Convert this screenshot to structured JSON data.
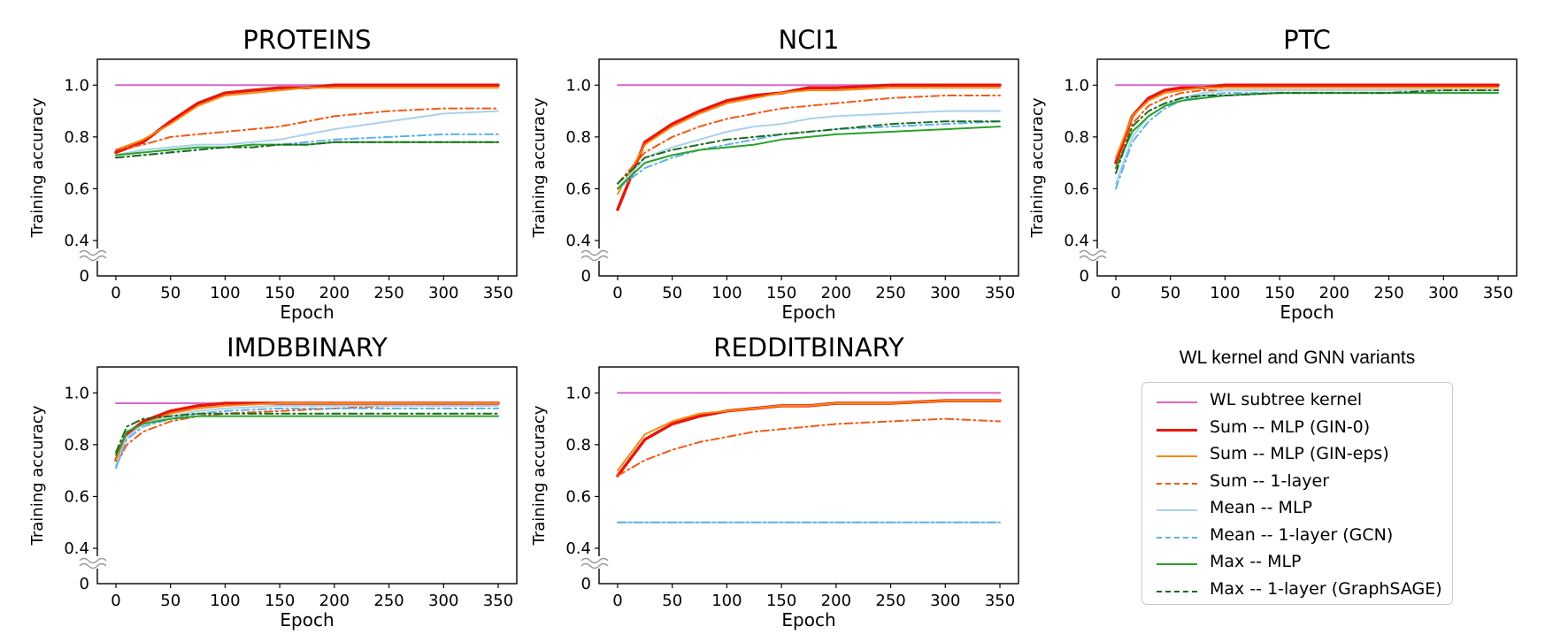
{
  "legend": {
    "title": "WL kernel and GNN variants",
    "entries": [
      {
        "label": "WL subtree kernel",
        "color": "#d966c8",
        "dash": "solid",
        "width": 2
      },
      {
        "label": "Sum -- MLP (GIN-0)",
        "color": "#e8170c",
        "dash": "solid",
        "width": 3.5
      },
      {
        "label": "Sum -- MLP (GIN-eps)",
        "color": "#f58a10",
        "dash": "solid",
        "width": 2
      },
      {
        "label": "Sum -- 1-layer",
        "color": "#ef5a16",
        "dash": "dashdot",
        "width": 2
      },
      {
        "label": "Mean -- MLP",
        "color": "#a9d2ea",
        "dash": "solid",
        "width": 2
      },
      {
        "label": "Mean -- 1-layer (GCN)",
        "color": "#5db3e8",
        "dash": "dashdot",
        "width": 2
      },
      {
        "label": "Max -- MLP",
        "color": "#2ca02c",
        "dash": "solid",
        "width": 2
      },
      {
        "label": "Max -- 1-layer (GraphSAGE)",
        "color": "#1e6b1e",
        "dash": "dashdot",
        "width": 2
      }
    ]
  },
  "chart_data": [
    {
      "type": "line",
      "title": "PROTEINS",
      "xlabel": "Epoch",
      "ylabel": "Training accuracy",
      "xlim": [
        -17,
        367
      ],
      "ylim": [
        0,
        1.1
      ],
      "y_axis_break": true,
      "xticks": [
        0,
        50,
        100,
        150,
        200,
        250,
        300,
        350
      ],
      "yticks": [
        "0",
        "0.4",
        "0.6",
        "0.8",
        "1.0"
      ],
      "x": [
        0,
        25,
        50,
        75,
        100,
        125,
        150,
        175,
        200,
        250,
        300,
        350
      ],
      "series": [
        {
          "name": "WL subtree kernel",
          "values": [
            1.0,
            1.0,
            1.0,
            1.0,
            1.0,
            1.0,
            1.0,
            1.0,
            1.0,
            1.0,
            1.0,
            1.0
          ]
        },
        {
          "name": "Sum -- MLP (GIN-0)",
          "values": [
            0.74,
            0.78,
            0.86,
            0.93,
            0.97,
            0.98,
            0.99,
            0.99,
            1.0,
            1.0,
            1.0,
            1.0
          ]
        },
        {
          "name": "Sum -- MLP (GIN-eps)",
          "values": [
            0.75,
            0.79,
            0.85,
            0.92,
            0.96,
            0.97,
            0.98,
            0.99,
            0.99,
            0.99,
            0.99,
            0.99
          ]
        },
        {
          "name": "Sum -- 1-layer",
          "values": [
            0.75,
            0.77,
            0.8,
            0.81,
            0.82,
            0.83,
            0.84,
            0.86,
            0.88,
            0.9,
            0.91,
            0.91
          ]
        },
        {
          "name": "Mean -- MLP",
          "values": [
            0.73,
            0.75,
            0.76,
            0.77,
            0.77,
            0.78,
            0.79,
            0.81,
            0.83,
            0.86,
            0.89,
            0.9
          ]
        },
        {
          "name": "Mean -- 1-layer (GCN)",
          "values": [
            0.72,
            0.73,
            0.74,
            0.75,
            0.76,
            0.77,
            0.77,
            0.78,
            0.79,
            0.8,
            0.81,
            0.81
          ]
        },
        {
          "name": "Max -- MLP",
          "values": [
            0.73,
            0.74,
            0.75,
            0.76,
            0.76,
            0.77,
            0.77,
            0.77,
            0.78,
            0.78,
            0.78,
            0.78
          ]
        },
        {
          "name": "Max -- 1-layer (GraphSAGE)",
          "values": [
            0.72,
            0.73,
            0.74,
            0.75,
            0.76,
            0.76,
            0.77,
            0.77,
            0.78,
            0.78,
            0.78,
            0.78
          ]
        }
      ]
    },
    {
      "type": "line",
      "title": "NCI1",
      "xlabel": "Epoch",
      "ylabel": "Training accuracy",
      "xlim": [
        -17,
        367
      ],
      "ylim": [
        0,
        1.1
      ],
      "y_axis_break": true,
      "xticks": [
        0,
        50,
        100,
        150,
        200,
        250,
        300,
        350
      ],
      "yticks": [
        "0",
        "0.4",
        "0.6",
        "0.8",
        "1.0"
      ],
      "x": [
        0,
        25,
        50,
        75,
        100,
        125,
        150,
        175,
        200,
        250,
        300,
        350
      ],
      "series": [
        {
          "name": "WL subtree kernel",
          "values": [
            1.0,
            1.0,
            1.0,
            1.0,
            1.0,
            1.0,
            1.0,
            1.0,
            1.0,
            1.0,
            1.0,
            1.0
          ]
        },
        {
          "name": "Sum -- MLP (GIN-0)",
          "values": [
            0.52,
            0.78,
            0.85,
            0.9,
            0.94,
            0.96,
            0.97,
            0.99,
            0.99,
            1.0,
            1.0,
            1.0
          ]
        },
        {
          "name": "Sum -- MLP (GIN-eps)",
          "values": [
            0.58,
            0.77,
            0.84,
            0.89,
            0.93,
            0.95,
            0.97,
            0.98,
            0.98,
            0.99,
            0.99,
            0.99
          ]
        },
        {
          "name": "Sum -- 1-layer",
          "values": [
            0.62,
            0.74,
            0.8,
            0.84,
            0.87,
            0.89,
            0.91,
            0.92,
            0.93,
            0.95,
            0.96,
            0.96
          ]
        },
        {
          "name": "Mean -- MLP",
          "values": [
            0.6,
            0.72,
            0.76,
            0.79,
            0.82,
            0.84,
            0.85,
            0.87,
            0.88,
            0.89,
            0.9,
            0.9
          ]
        },
        {
          "name": "Mean -- 1-layer (GCN)",
          "values": [
            0.6,
            0.68,
            0.72,
            0.75,
            0.77,
            0.79,
            0.81,
            0.82,
            0.83,
            0.84,
            0.85,
            0.86
          ]
        },
        {
          "name": "Max -- MLP",
          "values": [
            0.6,
            0.7,
            0.73,
            0.75,
            0.76,
            0.77,
            0.79,
            0.8,
            0.81,
            0.82,
            0.83,
            0.84
          ]
        },
        {
          "name": "Max -- 1-layer (GraphSAGE)",
          "values": [
            0.62,
            0.72,
            0.75,
            0.77,
            0.79,
            0.8,
            0.81,
            0.82,
            0.83,
            0.85,
            0.86,
            0.86
          ]
        }
      ]
    },
    {
      "type": "line",
      "title": "PTC",
      "xlabel": "Epoch",
      "ylabel": "Training accuracy",
      "xlim": [
        -17,
        367
      ],
      "ylim": [
        0,
        1.1
      ],
      "y_axis_break": true,
      "xticks": [
        0,
        50,
        100,
        150,
        200,
        250,
        300,
        350
      ],
      "yticks": [
        "0",
        "0.4",
        "0.6",
        "0.8",
        "1.0"
      ],
      "x": [
        0,
        15,
        30,
        45,
        60,
        80,
        100,
        150,
        200,
        250,
        300,
        350
      ],
      "series": [
        {
          "name": "WL subtree kernel",
          "values": [
            1.0,
            1.0,
            1.0,
            1.0,
            1.0,
            1.0,
            1.0,
            1.0,
            1.0,
            1.0,
            1.0,
            1.0
          ]
        },
        {
          "name": "Sum -- MLP (GIN-0)",
          "values": [
            0.7,
            0.88,
            0.95,
            0.98,
            0.99,
            0.99,
            1.0,
            1.0,
            1.0,
            1.0,
            1.0,
            1.0
          ]
        },
        {
          "name": "Sum -- MLP (GIN-eps)",
          "values": [
            0.72,
            0.88,
            0.94,
            0.97,
            0.98,
            0.99,
            0.99,
            0.99,
            0.99,
            0.99,
            0.99,
            0.99
          ]
        },
        {
          "name": "Sum -- 1-layer",
          "values": [
            0.68,
            0.85,
            0.92,
            0.95,
            0.97,
            0.98,
            0.98,
            0.98,
            0.98,
            0.98,
            0.98,
            0.98
          ]
        },
        {
          "name": "Mean -- MLP",
          "values": [
            0.62,
            0.8,
            0.88,
            0.92,
            0.95,
            0.97,
            0.98,
            0.98,
            0.98,
            0.98,
            0.98,
            0.98
          ]
        },
        {
          "name": "Mean -- 1-layer (GCN)",
          "values": [
            0.6,
            0.78,
            0.86,
            0.91,
            0.94,
            0.96,
            0.97,
            0.97,
            0.97,
            0.97,
            0.97,
            0.97
          ]
        },
        {
          "name": "Max -- MLP",
          "values": [
            0.68,
            0.82,
            0.88,
            0.92,
            0.94,
            0.95,
            0.96,
            0.97,
            0.97,
            0.97,
            0.97,
            0.97
          ]
        },
        {
          "name": "Max -- 1-layer (GraphSAGE)",
          "values": [
            0.66,
            0.84,
            0.9,
            0.93,
            0.95,
            0.96,
            0.96,
            0.97,
            0.97,
            0.97,
            0.98,
            0.98
          ]
        }
      ]
    },
    {
      "type": "line",
      "title": "IMDBBINARY",
      "xlabel": "Epoch",
      "ylabel": "Training accuracy",
      "xlim": [
        -17,
        367
      ],
      "ylim": [
        0,
        1.1
      ],
      "y_axis_break": true,
      "xticks": [
        0,
        50,
        100,
        150,
        200,
        250,
        300,
        350
      ],
      "yticks": [
        "0",
        "0.4",
        "0.6",
        "0.8",
        "1.0"
      ],
      "x": [
        0,
        10,
        25,
        50,
        75,
        100,
        150,
        200,
        250,
        300,
        350
      ],
      "series": [
        {
          "name": "WL subtree kernel",
          "values": [
            0.96,
            0.96,
            0.96,
            0.96,
            0.96,
            0.96,
            0.96,
            0.96,
            0.96,
            0.96,
            0.96
          ]
        },
        {
          "name": "Sum -- MLP (GIN-0)",
          "values": [
            0.74,
            0.84,
            0.89,
            0.93,
            0.95,
            0.96,
            0.96,
            0.96,
            0.96,
            0.96,
            0.96
          ]
        },
        {
          "name": "Sum -- MLP (GIN-eps)",
          "values": [
            0.74,
            0.83,
            0.88,
            0.92,
            0.94,
            0.95,
            0.96,
            0.96,
            0.96,
            0.96,
            0.96
          ]
        },
        {
          "name": "Sum -- 1-layer",
          "values": [
            0.72,
            0.8,
            0.85,
            0.89,
            0.91,
            0.92,
            0.93,
            0.94,
            0.95,
            0.95,
            0.95
          ]
        },
        {
          "name": "Mean -- MLP",
          "values": [
            0.72,
            0.83,
            0.88,
            0.91,
            0.93,
            0.94,
            0.95,
            0.95,
            0.95,
            0.95,
            0.95
          ]
        },
        {
          "name": "Mean -- 1-layer (GCN)",
          "values": [
            0.71,
            0.82,
            0.87,
            0.9,
            0.92,
            0.93,
            0.94,
            0.94,
            0.94,
            0.94,
            0.94
          ]
        },
        {
          "name": "Max -- MLP",
          "values": [
            0.76,
            0.85,
            0.88,
            0.9,
            0.91,
            0.91,
            0.91,
            0.91,
            0.91,
            0.91,
            0.91
          ]
        },
        {
          "name": "Max -- 1-layer (GraphSAGE)",
          "values": [
            0.77,
            0.87,
            0.9,
            0.91,
            0.92,
            0.92,
            0.92,
            0.92,
            0.92,
            0.92,
            0.92
          ]
        }
      ]
    },
    {
      "type": "line",
      "title": "REDDITBINARY",
      "xlabel": "Epoch",
      "ylabel": "Training accuracy",
      "xlim": [
        -17,
        367
      ],
      "ylim": [
        0,
        1.1
      ],
      "y_axis_break": true,
      "xticks": [
        0,
        50,
        100,
        150,
        200,
        250,
        300,
        350
      ],
      "yticks": [
        "0",
        "0.4",
        "0.6",
        "0.8",
        "1.0"
      ],
      "x": [
        0,
        25,
        50,
        75,
        100,
        125,
        150,
        175,
        200,
        250,
        300,
        350
      ],
      "series": [
        {
          "name": "WL subtree kernel",
          "values": [
            1.0,
            1.0,
            1.0,
            1.0,
            1.0,
            1.0,
            1.0,
            1.0,
            1.0,
            1.0,
            1.0,
            1.0
          ]
        },
        {
          "name": "Sum -- MLP (GIN-0)",
          "values": [
            0.68,
            0.82,
            0.88,
            0.91,
            0.93,
            0.94,
            0.95,
            0.95,
            0.96,
            0.96,
            0.97,
            0.97
          ]
        },
        {
          "name": "Sum -- MLP (GIN-eps)",
          "values": [
            0.7,
            0.84,
            0.89,
            0.92,
            0.93,
            0.94,
            0.95,
            0.95,
            0.96,
            0.96,
            0.97,
            0.97
          ]
        },
        {
          "name": "Sum -- 1-layer",
          "values": [
            0.68,
            0.74,
            0.78,
            0.81,
            0.83,
            0.85,
            0.86,
            0.87,
            0.88,
            0.89,
            0.9,
            0.89
          ]
        },
        {
          "name": "Mean -- MLP",
          "values": [
            0.5,
            0.5,
            0.5,
            0.5,
            0.5,
            0.5,
            0.5,
            0.5,
            0.5,
            0.5,
            0.5,
            0.5
          ]
        },
        {
          "name": "Mean -- 1-layer (GCN)",
          "values": [
            0.5,
            0.5,
            0.5,
            0.5,
            0.5,
            0.5,
            0.5,
            0.5,
            0.5,
            0.5,
            0.5,
            0.5
          ]
        }
      ]
    }
  ]
}
